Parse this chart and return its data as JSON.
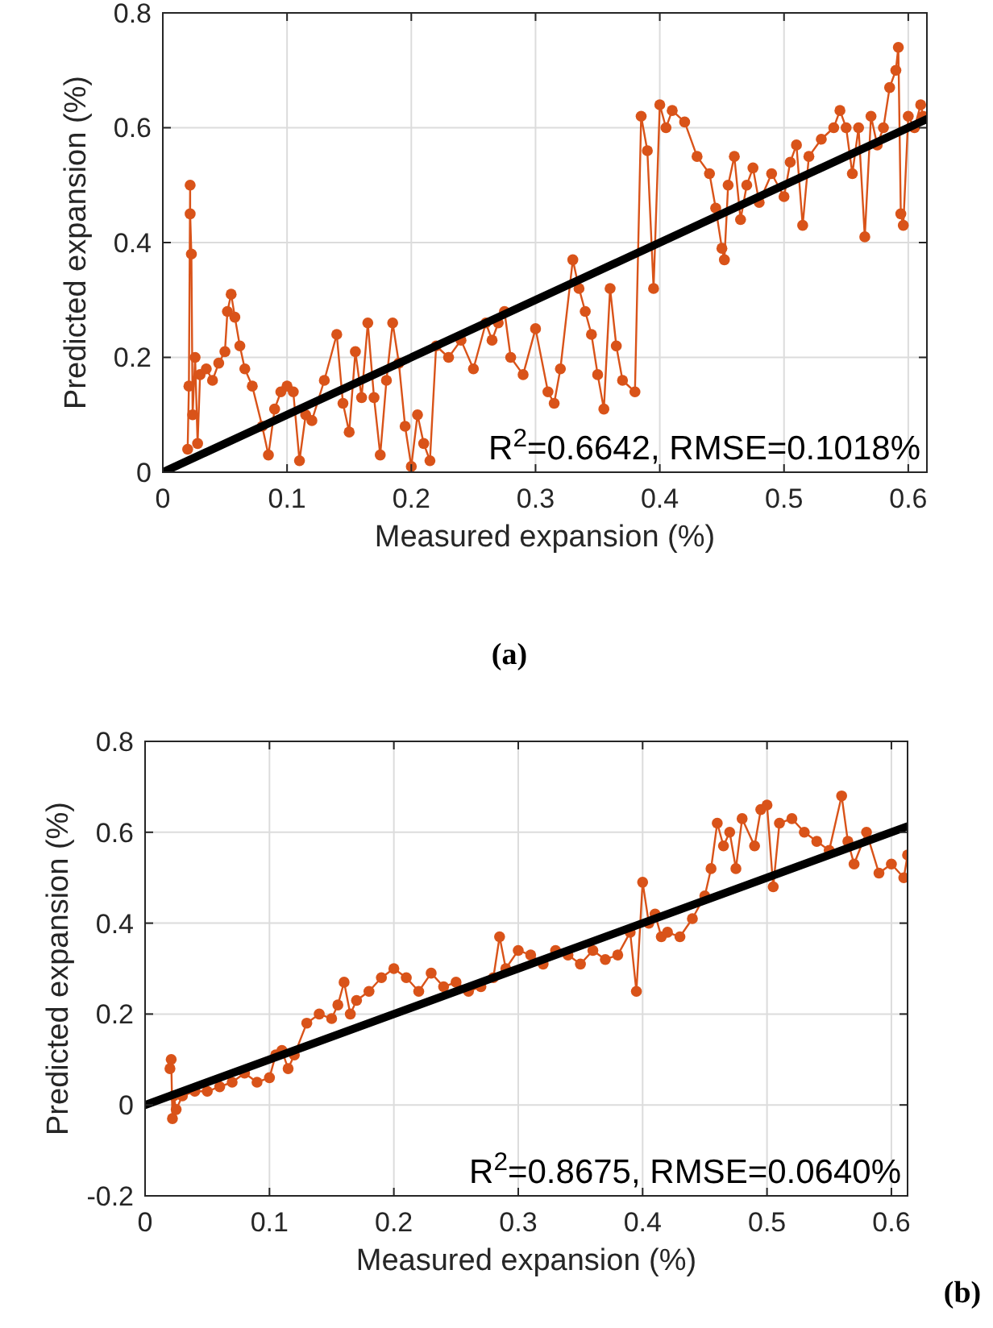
{
  "chart_data": [
    {
      "type": "line",
      "xlabel": "Measured expansion (%)",
      "ylabel": "Predicted expansion (%)",
      "xlim": [
        0,
        0.615
      ],
      "ylim": [
        0,
        0.8
      ],
      "xticks": [
        0,
        0.1,
        0.2,
        0.3,
        0.4,
        0.5,
        0.6
      ],
      "yticks": [
        0,
        0.2,
        0.4,
        0.6,
        0.8
      ],
      "grid": true,
      "annotations": [
        "R$^{2}$=0.6642, RMSE=0.1018%",
        "(a)"
      ],
      "series": [
        {
          "color": "#d95319",
          "marker": "circle",
          "x": [
            0.02,
            0.021,
            0.022,
            0.022,
            0.023,
            0.024,
            0.026,
            0.028,
            0.03,
            0.035,
            0.04,
            0.045,
            0.05,
            0.052,
            0.055,
            0.058,
            0.062,
            0.066,
            0.072,
            0.08,
            0.085,
            0.09,
            0.095,
            0.1,
            0.105,
            0.11,
            0.115,
            0.12,
            0.13,
            0.14,
            0.145,
            0.15,
            0.155,
            0.16,
            0.165,
            0.17,
            0.175,
            0.18,
            0.185,
            0.19,
            0.195,
            0.2,
            0.205,
            0.21,
            0.215,
            0.22,
            0.23,
            0.24,
            0.25,
            0.26,
            0.265,
            0.27,
            0.275,
            0.28,
            0.29,
            0.3,
            0.31,
            0.315,
            0.32,
            0.33,
            0.335,
            0.34,
            0.345,
            0.35,
            0.355,
            0.36,
            0.365,
            0.37,
            0.38,
            0.385,
            0.39,
            0.395,
            0.4,
            0.405,
            0.41,
            0.42,
            0.43,
            0.44,
            0.445,
            0.45,
            0.452,
            0.455,
            0.46,
            0.465,
            0.47,
            0.475,
            0.48,
            0.49,
            0.5,
            0.505,
            0.51,
            0.515,
            0.52,
            0.53,
            0.54,
            0.545,
            0.55,
            0.555,
            0.56,
            0.565,
            0.57,
            0.575,
            0.58,
            0.585,
            0.59,
            0.592,
            0.594,
            0.596,
            0.6,
            0.605,
            0.61,
            0.612
          ],
          "values": [
            0.04,
            0.15,
            0.5,
            0.45,
            0.38,
            0.1,
            0.2,
            0.05,
            0.17,
            0.18,
            0.16,
            0.19,
            0.21,
            0.28,
            0.31,
            0.27,
            0.22,
            0.18,
            0.15,
            0.08,
            0.03,
            0.11,
            0.14,
            0.15,
            0.14,
            0.02,
            0.1,
            0.09,
            0.16,
            0.24,
            0.12,
            0.07,
            0.21,
            0.13,
            0.26,
            0.13,
            0.03,
            0.16,
            0.26,
            0.19,
            0.08,
            0.01,
            0.1,
            0.05,
            0.02,
            0.22,
            0.2,
            0.23,
            0.18,
            0.26,
            0.23,
            0.26,
            0.28,
            0.2,
            0.17,
            0.25,
            0.14,
            0.12,
            0.18,
            0.37,
            0.32,
            0.28,
            0.24,
            0.17,
            0.11,
            0.32,
            0.22,
            0.16,
            0.14,
            0.62,
            0.56,
            0.32,
            0.64,
            0.6,
            0.63,
            0.61,
            0.55,
            0.52,
            0.46,
            0.39,
            0.37,
            0.5,
            0.55,
            0.44,
            0.5,
            0.53,
            0.47,
            0.52,
            0.48,
            0.54,
            0.57,
            0.43,
            0.55,
            0.58,
            0.6,
            0.63,
            0.6,
            0.52,
            0.6,
            0.41,
            0.62,
            0.57,
            0.6,
            0.67,
            0.7,
            0.74,
            0.45,
            0.43,
            0.62,
            0.6,
            0.64,
            0.62
          ]
        },
        {
          "color": "#000000",
          "marker": "none",
          "x": [
            0,
            0.615
          ],
          "values": [
            0,
            0.615
          ]
        }
      ]
    },
    {
      "type": "line",
      "xlabel": "Measured expansion (%)",
      "ylabel": "Predicted expansion (%)",
      "xlim": [
        0,
        0.613
      ],
      "ylim": [
        -0.2,
        0.8
      ],
      "xticks": [
        0,
        0.1,
        0.2,
        0.3,
        0.4,
        0.5,
        0.6
      ],
      "yticks": [
        -0.2,
        0,
        0.2,
        0.4,
        0.6,
        0.8
      ],
      "grid": true,
      "annotations": [
        "R$^{2}$=0.8675, RMSE=0.0640%",
        "(b)"
      ],
      "series": [
        {
          "color": "#d95319",
          "marker": "circle",
          "x": [
            0.02,
            0.021,
            0.022,
            0.023,
            0.025,
            0.03,
            0.04,
            0.05,
            0.06,
            0.07,
            0.08,
            0.09,
            0.1,
            0.105,
            0.11,
            0.115,
            0.12,
            0.13,
            0.14,
            0.15,
            0.155,
            0.16,
            0.165,
            0.17,
            0.18,
            0.19,
            0.2,
            0.21,
            0.22,
            0.23,
            0.24,
            0.25,
            0.26,
            0.27,
            0.28,
            0.285,
            0.29,
            0.3,
            0.31,
            0.32,
            0.33,
            0.34,
            0.35,
            0.36,
            0.37,
            0.38,
            0.39,
            0.395,
            0.4,
            0.405,
            0.41,
            0.415,
            0.42,
            0.43,
            0.44,
            0.45,
            0.455,
            0.46,
            0.465,
            0.47,
            0.475,
            0.48,
            0.49,
            0.495,
            0.5,
            0.505,
            0.51,
            0.52,
            0.53,
            0.54,
            0.55,
            0.56,
            0.565,
            0.57,
            0.58,
            0.59,
            0.6,
            0.61,
            0.613
          ],
          "values": [
            0.08,
            0.1,
            -0.03,
            0.02,
            -0.01,
            0.02,
            0.03,
            0.03,
            0.04,
            0.05,
            0.07,
            0.05,
            0.06,
            0.11,
            0.12,
            0.08,
            0.11,
            0.18,
            0.2,
            0.19,
            0.22,
            0.27,
            0.2,
            0.23,
            0.25,
            0.28,
            0.3,
            0.28,
            0.25,
            0.29,
            0.26,
            0.27,
            0.25,
            0.26,
            0.28,
            0.37,
            0.3,
            0.34,
            0.33,
            0.31,
            0.34,
            0.33,
            0.31,
            0.34,
            0.32,
            0.33,
            0.38,
            0.25,
            0.49,
            0.4,
            0.42,
            0.37,
            0.38,
            0.37,
            0.41,
            0.46,
            0.52,
            0.62,
            0.57,
            0.6,
            0.52,
            0.63,
            0.57,
            0.65,
            0.66,
            0.48,
            0.62,
            0.63,
            0.6,
            0.58,
            0.56,
            0.68,
            0.58,
            0.53,
            0.6,
            0.51,
            0.53,
            0.5,
            0.55
          ]
        },
        {
          "color": "#000000",
          "marker": "none",
          "x": [
            0,
            0.613
          ],
          "values": [
            0,
            0.613
          ]
        }
      ]
    }
  ]
}
